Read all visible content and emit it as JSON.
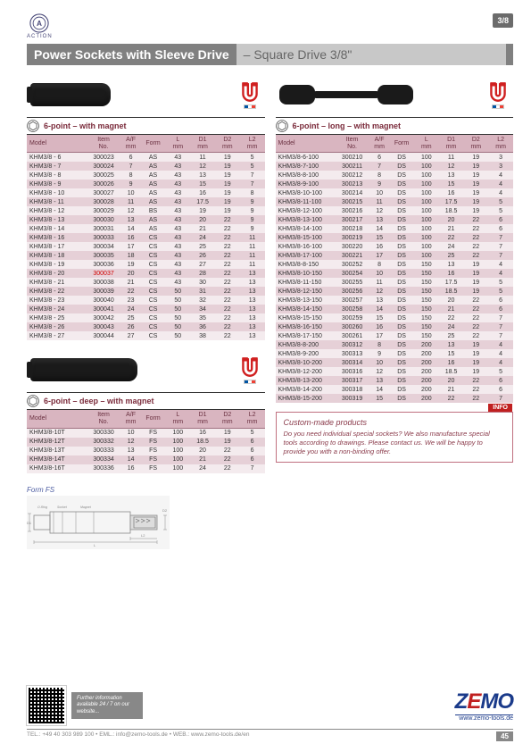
{
  "brand": "ACTION",
  "section_badge": "3/8",
  "title_bold": "Power Sockets with Sleeve Drive",
  "title_light": "– Square Drive 3/8\"",
  "flag_colors": [
    "#0055a4",
    "#ffffff",
    "#ef4135"
  ],
  "magnet_color": "#d02020",
  "tables": {
    "headers7": [
      "Model",
      "Item\nNo.",
      "A/F\nmm",
      "Form",
      "L\nmm",
      "D1\nmm",
      "D2\nmm",
      "L2\nmm"
    ],
    "col_widths7": [
      "24%",
      "14%",
      "8%",
      "10%",
      "10%",
      "10%",
      "10%",
      "10%"
    ],
    "t1": {
      "title": "6-point – with magnet",
      "rows": [
        [
          "KHM3/8 - 6",
          "300023",
          "6",
          "AS",
          "43",
          "11",
          "19",
          "5"
        ],
        [
          "KHM3/8 - 7",
          "300024",
          "7",
          "AS",
          "43",
          "12",
          "19",
          "5"
        ],
        [
          "KHM3/8 - 8",
          "300025",
          "8",
          "AS",
          "43",
          "13",
          "19",
          "7"
        ],
        [
          "KHM3/8 - 9",
          "300026",
          "9",
          "AS",
          "43",
          "15",
          "19",
          "7"
        ],
        [
          "KHM3/8 - 10",
          "300027",
          "10",
          "AS",
          "43",
          "16",
          "19",
          "8"
        ],
        [
          "KHM3/8 - 11",
          "300028",
          "11",
          "AS",
          "43",
          "17.5",
          "19",
          "9"
        ],
        [
          "KHM3/8 - 12",
          "300029",
          "12",
          "BS",
          "43",
          "19",
          "19",
          "9"
        ],
        [
          "KHM3/8 - 13",
          "300030",
          "13",
          "AS",
          "43",
          "20",
          "22",
          "9"
        ],
        [
          "KHM3/8 - 14",
          "300031",
          "14",
          "AS",
          "43",
          "21",
          "22",
          "9"
        ],
        [
          "KHM3/8 - 16",
          "300033",
          "16",
          "CS",
          "43",
          "24",
          "22",
          "11"
        ],
        [
          "KHM3/8 - 17",
          "300034",
          "17",
          "CS",
          "43",
          "25",
          "22",
          "11"
        ],
        [
          "KHM3/8 - 18",
          "300035",
          "18",
          "CS",
          "43",
          "26",
          "22",
          "11"
        ],
        [
          "KHM3/8 - 19",
          "300036",
          "19",
          "CS",
          "43",
          "27",
          "22",
          "11"
        ],
        [
          "KHM3/8 - 20",
          "300037",
          "20",
          "CS",
          "43",
          "28",
          "22",
          "13"
        ],
        [
          "KHM3/8 - 21",
          "300038",
          "21",
          "CS",
          "43",
          "30",
          "22",
          "13"
        ],
        [
          "KHM3/8 - 22",
          "300039",
          "22",
          "CS",
          "50",
          "31",
          "22",
          "13"
        ],
        [
          "KHM3/8 - 23",
          "300040",
          "23",
          "CS",
          "50",
          "32",
          "22",
          "13"
        ],
        [
          "KHM3/8 - 24",
          "300041",
          "24",
          "CS",
          "50",
          "34",
          "22",
          "13"
        ],
        [
          "KHM3/8 - 25",
          "300042",
          "25",
          "CS",
          "50",
          "35",
          "22",
          "13"
        ],
        [
          "KHM3/8 - 26",
          "300043",
          "26",
          "CS",
          "50",
          "36",
          "22",
          "13"
        ],
        [
          "KHM3/8 - 27",
          "300044",
          "27",
          "CS",
          "50",
          "38",
          "22",
          "13"
        ]
      ],
      "red_item_no_row_index": 13
    },
    "t2": {
      "title": "6-point – deep – with magnet",
      "rows": [
        [
          "KHM3/8-10T",
          "300330",
          "10",
          "FS",
          "100",
          "16",
          "19",
          "5"
        ],
        [
          "KHM3/8-12T",
          "300332",
          "12",
          "FS",
          "100",
          "18.5",
          "19",
          "6"
        ],
        [
          "KHM3/8-13T",
          "300333",
          "13",
          "FS",
          "100",
          "20",
          "22",
          "6"
        ],
        [
          "KHM3/8-14T",
          "300334",
          "14",
          "FS",
          "100",
          "21",
          "22",
          "6"
        ],
        [
          "KHM3/8-16T",
          "300336",
          "16",
          "FS",
          "100",
          "24",
          "22",
          "7"
        ]
      ]
    },
    "t3": {
      "title": "6-point – long – with magnet",
      "rows": [
        [
          "KHM3/8-6-100",
          "300210",
          "6",
          "DS",
          "100",
          "11",
          "19",
          "3"
        ],
        [
          "KHM3/8-7-100",
          "300211",
          "7",
          "DS",
          "100",
          "12",
          "19",
          "3"
        ],
        [
          "KHM3/8-8-100",
          "300212",
          "8",
          "DS",
          "100",
          "13",
          "19",
          "4"
        ],
        [
          "KHM3/8-9-100",
          "300213",
          "9",
          "DS",
          "100",
          "15",
          "19",
          "4"
        ],
        [
          "KHM3/8-10-100",
          "300214",
          "10",
          "DS",
          "100",
          "16",
          "19",
          "4"
        ],
        [
          "KHM3/8-11-100",
          "300215",
          "11",
          "DS",
          "100",
          "17.5",
          "19",
          "5"
        ],
        [
          "KHM3/8-12-100",
          "300216",
          "12",
          "DS",
          "100",
          "18.5",
          "19",
          "5"
        ],
        [
          "KHM3/8-13-100",
          "300217",
          "13",
          "DS",
          "100",
          "20",
          "22",
          "6"
        ],
        [
          "KHM3/8-14-100",
          "300218",
          "14",
          "DS",
          "100",
          "21",
          "22",
          "6"
        ],
        [
          "KHM3/8-15-100",
          "300219",
          "15",
          "DS",
          "100",
          "22",
          "22",
          "7"
        ],
        [
          "KHM3/8-16-100",
          "300220",
          "16",
          "DS",
          "100",
          "24",
          "22",
          "7"
        ],
        [
          "KHM3/8-17-100",
          "300221",
          "17",
          "DS",
          "100",
          "25",
          "22",
          "7"
        ],
        [
          "KHM3/8-8-150",
          "300252",
          "8",
          "DS",
          "150",
          "13",
          "19",
          "4"
        ],
        [
          "KHM3/8-10-150",
          "300254",
          "10",
          "DS",
          "150",
          "16",
          "19",
          "4"
        ],
        [
          "KHM3/8-11-150",
          "300255",
          "11",
          "DS",
          "150",
          "17.5",
          "19",
          "5"
        ],
        [
          "KHM3/8-12-150",
          "300256",
          "12",
          "DS",
          "150",
          "18.5",
          "19",
          "5"
        ],
        [
          "KHM3/8-13-150",
          "300257",
          "13",
          "DS",
          "150",
          "20",
          "22",
          "6"
        ],
        [
          "KHM3/8-14-150",
          "300258",
          "14",
          "DS",
          "150",
          "21",
          "22",
          "6"
        ],
        [
          "KHM3/8-15-150",
          "300259",
          "15",
          "DS",
          "150",
          "22",
          "22",
          "7"
        ],
        [
          "KHM3/8-16-150",
          "300260",
          "16",
          "DS",
          "150",
          "24",
          "22",
          "7"
        ],
        [
          "KHM3/8-17-150",
          "300261",
          "17",
          "DS",
          "150",
          "25",
          "22",
          "7"
        ],
        [
          "KHM3/8-8-200",
          "300312",
          "8",
          "DS",
          "200",
          "13",
          "19",
          "4"
        ],
        [
          "KHM3/8-9-200",
          "300313",
          "9",
          "DS",
          "200",
          "15",
          "19",
          "4"
        ],
        [
          "KHM3/8-10-200",
          "300314",
          "10",
          "DS",
          "200",
          "16",
          "19",
          "4"
        ],
        [
          "KHM3/8-12-200",
          "300316",
          "12",
          "DS",
          "200",
          "18.5",
          "19",
          "5"
        ],
        [
          "KHM3/8-13-200",
          "300317",
          "13",
          "DS",
          "200",
          "20",
          "22",
          "6"
        ],
        [
          "KHM3/8-14-200",
          "300318",
          "14",
          "DS",
          "200",
          "21",
          "22",
          "6"
        ],
        [
          "KHM3/8-15-200",
          "300319",
          "15",
          "DS",
          "200",
          "22",
          "22",
          "7"
        ]
      ]
    }
  },
  "info": {
    "tag": "INFO",
    "title": "Custom-made products",
    "body": "Do you need individual special sockets? We also manufacture special tools according to drawings. Please contact us. We will be happy to provide you with a non-binding offer."
  },
  "formfs_label": "Form FS",
  "footer": {
    "qr_text": "Further information available 24 / 7 on our website...",
    "zemo_url": "www.zemo-tools.de",
    "contact": "TEL.: +49 40 303 989 100  •  EML.: info@zemo-tools.de  •  WEB.: www.zemo-tools.de/en",
    "page": "45"
  }
}
